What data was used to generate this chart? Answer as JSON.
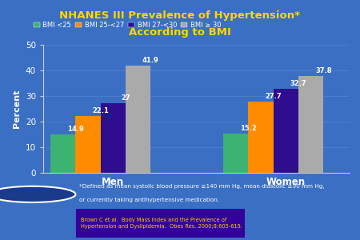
{
  "title_line1": "NHANES III Prevalence of Hypertension*",
  "title_line2": "According to BMI",
  "title_color": "#FFD700",
  "title_bg_color": "#3300AA",
  "background_color": "#3A6FC4",
  "plot_bg_color": "#3A6FC4",
  "categories": [
    "Men",
    "Women"
  ],
  "legend_labels": [
    "BMI <25",
    "BMI 25-<27",
    "BMI 27-<30",
    "BMI ≥ 30"
  ],
  "bar_colors": [
    "#3CB371",
    "#FF8C00",
    "#2E0D8E",
    "#AAAAAA"
  ],
  "values": {
    "Men": [
      14.9,
      22.1,
      27.0,
      41.9
    ],
    "Women": [
      15.2,
      27.7,
      32.7,
      37.8
    ]
  },
  "value_labels": {
    "Men": [
      "14.9",
      "22.1",
      "27",
      "41.9"
    ],
    "Women": [
      "15.2",
      "27.7",
      "32.7",
      "37.8"
    ]
  },
  "ylabel": "Percent",
  "ylim": [
    0,
    50
  ],
  "yticks": [
    0,
    10,
    20,
    30,
    40,
    50
  ],
  "footnote1": "*Defined as mean systolic blood pressure ≥140 mm Hg, mean diastolic ≥90 mm Hg,",
  "footnote2": "or currently taking antihypertensive medication.",
  "reference": "Brown C et al.  Body Mass Index and the Prevalence of\nHypertension and Dyslipidemia.  Obes Res. 2000;8:605-619.",
  "ref_bg_color": "#330099",
  "ref_text_color": "#FFD700",
  "footnote_color": "#FFFFFF",
  "axis_color": "#CCCCCC",
  "tick_color": "#FFFFFF",
  "label_color": "#FFFFFF"
}
